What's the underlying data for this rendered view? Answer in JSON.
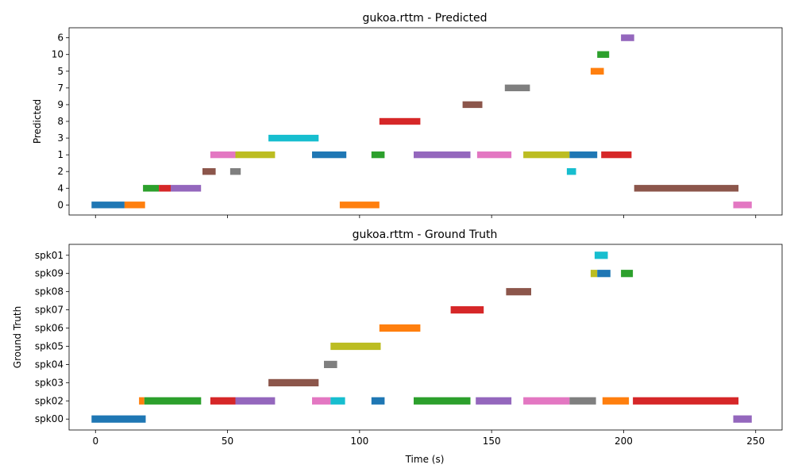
{
  "colors": [
    "#1f77b4",
    "#ff7f0e",
    "#2ca02c",
    "#d62728",
    "#9467bd",
    "#8c564b",
    "#e377c2",
    "#7f7f7f",
    "#bcbd22",
    "#17becf"
  ],
  "chart_data": [
    {
      "type": "bar",
      "title": "gukoa.rttm - Predicted",
      "xlabel": "",
      "ylabel": "Predicted",
      "xlim": [
        -10,
        260
      ],
      "xticks": [
        0,
        50,
        100,
        150,
        200,
        250
      ],
      "categories": [
        "0",
        "4",
        "2",
        "1",
        "3",
        "8",
        "9",
        "7",
        "5",
        "10",
        "6"
      ],
      "segments": [
        {
          "label": "0",
          "start": -1.5,
          "end": 11,
          "color": "#1f77b4"
        },
        {
          "label": "0",
          "start": 11,
          "end": 18.8,
          "color": "#ff7f0e"
        },
        {
          "label": "4",
          "start": 18,
          "end": 24,
          "color": "#2ca02c"
        },
        {
          "label": "4",
          "start": 24,
          "end": 28.5,
          "color": "#d62728"
        },
        {
          "label": "4",
          "start": 28.5,
          "end": 40,
          "color": "#9467bd"
        },
        {
          "label": "2",
          "start": 40.5,
          "end": 45.5,
          "color": "#8c564b"
        },
        {
          "label": "2",
          "start": 51,
          "end": 55,
          "color": "#7f7f7f"
        },
        {
          "label": "1",
          "start": 43.5,
          "end": 53,
          "color": "#e377c2"
        },
        {
          "label": "1",
          "start": 53,
          "end": 68,
          "color": "#bcbd22"
        },
        {
          "label": "3",
          "start": 65.5,
          "end": 84.5,
          "color": "#17becf"
        },
        {
          "label": "1",
          "start": 82,
          "end": 95,
          "color": "#1f77b4"
        },
        {
          "label": "0",
          "start": 92.5,
          "end": 107.5,
          "color": "#ff7f0e"
        },
        {
          "label": "1",
          "start": 104.5,
          "end": 109.5,
          "color": "#2ca02c"
        },
        {
          "label": "8",
          "start": 107.5,
          "end": 123,
          "color": "#d62728"
        },
        {
          "label": "1",
          "start": 120.5,
          "end": 142,
          "color": "#9467bd"
        },
        {
          "label": "9",
          "start": 139,
          "end": 146.5,
          "color": "#8c564b"
        },
        {
          "label": "1",
          "start": 144.5,
          "end": 157.5,
          "color": "#e377c2"
        },
        {
          "label": "7",
          "start": 155,
          "end": 164.5,
          "color": "#7f7f7f"
        },
        {
          "label": "1",
          "start": 162,
          "end": 179.5,
          "color": "#bcbd22"
        },
        {
          "label": "1",
          "start": 179.5,
          "end": 190,
          "color": "#1f77b4"
        },
        {
          "label": "2",
          "start": 178.5,
          "end": 182,
          "color": "#17becf"
        },
        {
          "label": "5",
          "start": 187.5,
          "end": 192.5,
          "color": "#ff7f0e"
        },
        {
          "label": "10",
          "start": 190,
          "end": 194.5,
          "color": "#2ca02c"
        },
        {
          "label": "1",
          "start": 191.5,
          "end": 203,
          "color": "#d62728"
        },
        {
          "label": "6",
          "start": 199,
          "end": 204,
          "color": "#9467bd"
        },
        {
          "label": "4",
          "start": 204,
          "end": 243.5,
          "color": "#8c564b"
        },
        {
          "label": "0",
          "start": 241.5,
          "end": 248.5,
          "color": "#e377c2"
        }
      ]
    },
    {
      "type": "bar",
      "title": "gukoa.rttm - Ground Truth",
      "xlabel": "Time (s)",
      "ylabel": "Ground Truth",
      "xlim": [
        -10,
        260
      ],
      "xticks": [
        0,
        50,
        100,
        150,
        200,
        250
      ],
      "categories": [
        "spk00",
        "spk02",
        "spk03",
        "spk04",
        "spk05",
        "spk06",
        "spk07",
        "spk08",
        "spk09",
        "spk01"
      ],
      "segments": [
        {
          "label": "spk00",
          "start": -1.5,
          "end": 19,
          "color": "#1f77b4"
        },
        {
          "label": "spk02",
          "start": 16.5,
          "end": 18.5,
          "color": "#ff7f0e"
        },
        {
          "label": "spk02",
          "start": 18.5,
          "end": 40,
          "color": "#2ca02c"
        },
        {
          "label": "spk02",
          "start": 43.5,
          "end": 53,
          "color": "#d62728"
        },
        {
          "label": "spk02",
          "start": 53,
          "end": 68,
          "color": "#9467bd"
        },
        {
          "label": "spk03",
          "start": 65.5,
          "end": 84.5,
          "color": "#8c564b"
        },
        {
          "label": "spk02",
          "start": 82,
          "end": 89,
          "color": "#e377c2"
        },
        {
          "label": "spk04",
          "start": 86.5,
          "end": 91.5,
          "color": "#7f7f7f"
        },
        {
          "label": "spk05",
          "start": 89,
          "end": 108,
          "color": "#bcbd22"
        },
        {
          "label": "spk02",
          "start": 89,
          "end": 94.5,
          "color": "#17becf"
        },
        {
          "label": "spk02",
          "start": 104.5,
          "end": 109.5,
          "color": "#1f77b4"
        },
        {
          "label": "spk06",
          "start": 107.5,
          "end": 123,
          "color": "#ff7f0e"
        },
        {
          "label": "spk02",
          "start": 120.5,
          "end": 142,
          "color": "#2ca02c"
        },
        {
          "label": "spk07",
          "start": 134.5,
          "end": 147,
          "color": "#d62728"
        },
        {
          "label": "spk02",
          "start": 144,
          "end": 157.5,
          "color": "#9467bd"
        },
        {
          "label": "spk08",
          "start": 155.5,
          "end": 165,
          "color": "#8c564b"
        },
        {
          "label": "spk02",
          "start": 162,
          "end": 179.5,
          "color": "#e377c2"
        },
        {
          "label": "spk02",
          "start": 179.5,
          "end": 189.5,
          "color": "#7f7f7f"
        },
        {
          "label": "spk09",
          "start": 187.5,
          "end": 190,
          "color": "#bcbd22"
        },
        {
          "label": "spk09",
          "start": 190,
          "end": 195,
          "color": "#1f77b4"
        },
        {
          "label": "spk01",
          "start": 189,
          "end": 194,
          "color": "#17becf"
        },
        {
          "label": "spk02",
          "start": 192,
          "end": 202,
          "color": "#ff7f0e"
        },
        {
          "label": "spk09",
          "start": 199,
          "end": 203.5,
          "color": "#2ca02c"
        },
        {
          "label": "spk02",
          "start": 203.5,
          "end": 243.5,
          "color": "#d62728"
        },
        {
          "label": "spk00",
          "start": 241.5,
          "end": 248.5,
          "color": "#9467bd"
        }
      ]
    }
  ]
}
